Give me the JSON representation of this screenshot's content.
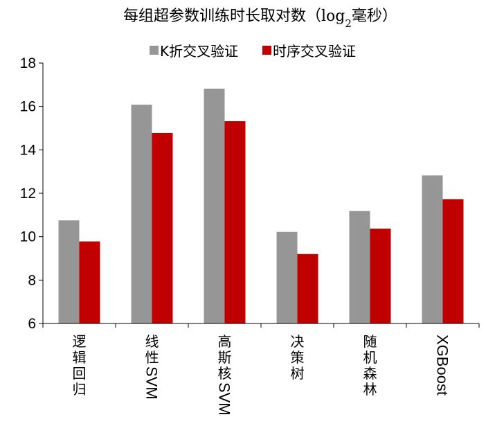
{
  "chart_data": {
    "type": "bar",
    "title": "每组超参数训练时长取对数（log",
    "title_sub": "2",
    "title_end": "毫秒）",
    "categories": [
      "逻辑回归",
      "线性SVM",
      "高斯核SVM",
      "决策树",
      "随机森林",
      "XGBoost"
    ],
    "series": [
      {
        "name": "K折交叉验证",
        "color": "#969696",
        "values": [
          10.75,
          16.08,
          16.82,
          10.22,
          11.18,
          12.82
        ]
      },
      {
        "name": "时序交叉验证",
        "color": "#c00000",
        "values": [
          9.78,
          14.78,
          15.32,
          9.2,
          10.37,
          11.73
        ]
      }
    ],
    "ylim": [
      6,
      18
    ],
    "yticks": [
      6,
      8,
      10,
      12,
      14,
      16,
      18
    ],
    "grid": false,
    "legend": "top"
  }
}
